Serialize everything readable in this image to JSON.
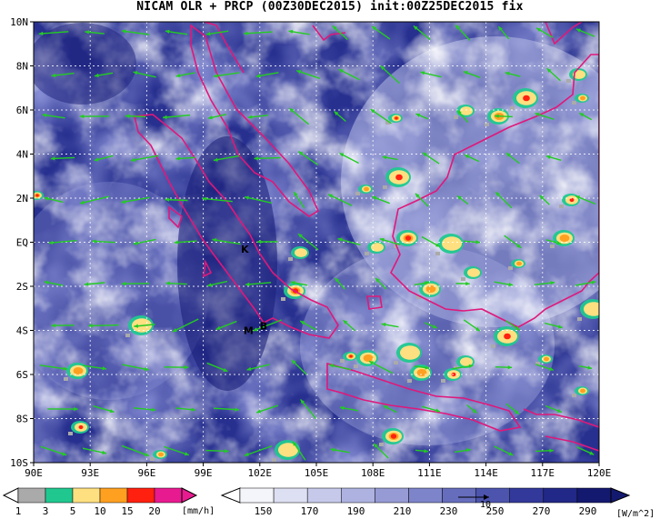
{
  "title": "NICAM OLR + PRCP (00Z30DEC2015) init:00Z25DEC2015 fix",
  "colors": {
    "olr_deep": "#1b1f7a",
    "olr_mid": "#4a52b8",
    "olr_light": "#b9bde6",
    "cloud_white": "#ffffff",
    "coastline": "#e0187a",
    "wind_vector": "#22cc22",
    "gridline": "#ffffff"
  },
  "map": {
    "lat_labels": [
      "10N",
      "8N",
      "6N",
      "4N",
      "2N",
      "EQ",
      "2S",
      "4S",
      "6S",
      "8S",
      "10S"
    ],
    "lon_labels": [
      "90E",
      "93E",
      "96E",
      "99E",
      "102E",
      "105E",
      "108E",
      "111E",
      "114E",
      "117E",
      "120E"
    ],
    "lon_range": [
      90,
      120
    ],
    "lat_range": [
      -10,
      10
    ],
    "markers": [
      {
        "label": "K",
        "lon": 101.2,
        "lat": -0.3
      },
      {
        "label": "M",
        "lon": 101.4,
        "lat": -4.0
      },
      {
        "label": "B",
        "lon": 102.2,
        "lat": -3.8
      }
    ]
  },
  "precip_bar": {
    "ticks": [
      "1",
      "3",
      "5",
      "10",
      "15",
      "20"
    ],
    "unit": "[mm/h]",
    "colors": [
      "#aaaaaa",
      "#20c890",
      "#ffe080",
      "#ffa020",
      "#ff2010",
      "#e81a90"
    ]
  },
  "olr_bar": {
    "ticks": [
      "150",
      "170",
      "190",
      "210",
      "230",
      "250",
      "270",
      "290"
    ],
    "unit": "[W/m^2]",
    "reference_vector": "10",
    "colors": [
      "#f4f4fb",
      "#dddff2",
      "#c6c9ea",
      "#aeb2e0",
      "#969bd5",
      "#7e84ca",
      "#666dbd",
      "#4c54ae",
      "#33399a",
      "#222887",
      "#141970"
    ]
  }
}
